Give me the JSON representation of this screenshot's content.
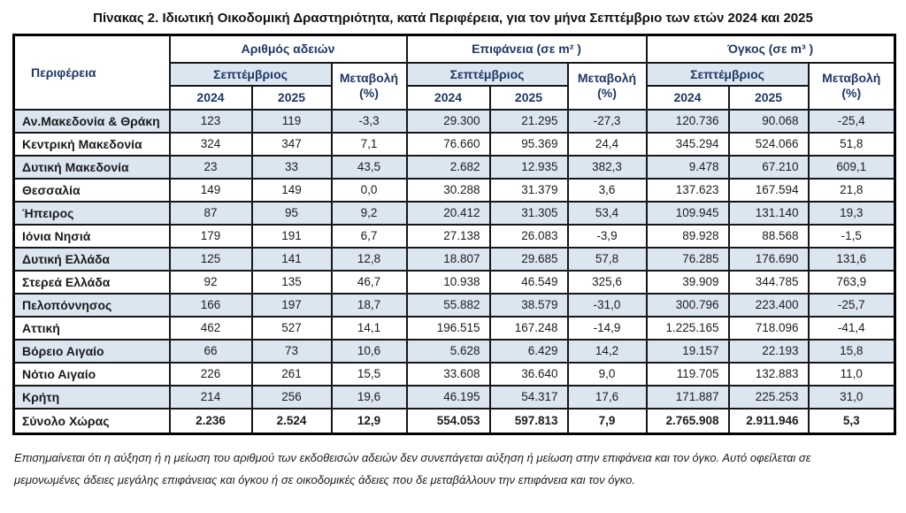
{
  "title": "Πίνακας 2. Ιδιωτική Οικοδομική Δραστηριότητα, κατά  Περιφέρεια, για τον μήνα Σεπτέμβριο των ετών 2024 και 2025",
  "colors": {
    "band_blue": "#dce6f1",
    "header_text_navy": "#1f3864",
    "border_black": "#161616",
    "background": "#ffffff"
  },
  "table": {
    "region_header": "Περιφέρεια",
    "groups": [
      {
        "label": "Αριθμός αδειών",
        "month": "Σεπτέμβριος",
        "change": "Μεταβολή",
        "change_unit": "(%)",
        "years": [
          "2024",
          "2025"
        ]
      },
      {
        "label": "Επιφάνεια (σε m² )",
        "month": "Σεπτέμβριος",
        "change": "Μεταβολή",
        "change_unit": "(%)",
        "years": [
          "2024",
          "2025"
        ]
      },
      {
        "label": "Όγκος (σε m³ )",
        "month": "Σεπτέμβριος",
        "change": "Μεταβολή",
        "change_unit": "(%)",
        "years": [
          "2024",
          "2025"
        ]
      }
    ],
    "rows": [
      [
        "Αν.Μακεδονία & Θράκη",
        "123",
        "119",
        "-3,3",
        "29.300",
        "21.295",
        "-27,3",
        "120.736",
        "90.068",
        "-25,4"
      ],
      [
        "Κεντρική Μακεδονία",
        "324",
        "347",
        "7,1",
        "76.660",
        "95.369",
        "24,4",
        "345.294",
        "524.066",
        "51,8"
      ],
      [
        "Δυτική Μακεδονία",
        "23",
        "33",
        "43,5",
        "2.682",
        "12.935",
        "382,3",
        "9.478",
        "67.210",
        "609,1"
      ],
      [
        "Θεσσαλία",
        "149",
        "149",
        "0,0",
        "30.288",
        "31.379",
        "3,6",
        "137.623",
        "167.594",
        "21,8"
      ],
      [
        "Ήπειρος",
        "87",
        "95",
        "9,2",
        "20.412",
        "31.305",
        "53,4",
        "109.945",
        "131.140",
        "19,3"
      ],
      [
        "Ιόνια Νησιά",
        "179",
        "191",
        "6,7",
        "27.138",
        "26.083",
        "-3,9",
        "89.928",
        "88.568",
        "-1,5"
      ],
      [
        "Δυτική Ελλάδα",
        "125",
        "141",
        "12,8",
        "18.807",
        "29.685",
        "57,8",
        "76.285",
        "176.690",
        "131,6"
      ],
      [
        "Στερεά Ελλάδα",
        "92",
        "135",
        "46,7",
        "10.938",
        "46.549",
        "325,6",
        "39.909",
        "344.785",
        "763,9"
      ],
      [
        "Πελοπόννησος",
        "166",
        "197",
        "18,7",
        "55.882",
        "38.579",
        "-31,0",
        "300.796",
        "223.400",
        "-25,7"
      ],
      [
        "Αττική",
        "462",
        "527",
        "14,1",
        "196.515",
        "167.248",
        "-14,9",
        "1.225.165",
        "718.096",
        "-41,4"
      ],
      [
        "Βόρειο Αιγαίο",
        "66",
        "73",
        "10,6",
        "5.628",
        "6.429",
        "14,2",
        "19.157",
        "22.193",
        "15,8"
      ],
      [
        "Νότιο Αιγαίο",
        "226",
        "261",
        "15,5",
        "33.608",
        "36.640",
        "9,0",
        "119.705",
        "132.883",
        "11,0"
      ],
      [
        "Κρήτη",
        "214",
        "256",
        "19,6",
        "46.195",
        "54.317",
        "17,6",
        "171.887",
        "225.253",
        "31,0"
      ]
    ],
    "total": [
      "Σύνολο Χώρας",
      "2.236",
      "2.524",
      "12,9",
      "554.053",
      "597.813",
      "7,9",
      "2.765.908",
      "2.911.946",
      "5,3"
    ]
  },
  "footnote_lines": [
    "Επισημαίνεται ότι η αύξηση ή η μείωση του αριθμού των εκδοθεισών αδειών δεν συνεπάγεται αύξηση ή μείωση στην επιφάνεια και τον όγκο. Αυτό οφείλεται σε",
    "μεμονωμένες άδειες μεγάλης επιφάνειας και όγκου ή σε οικοδομικές άδειες που δε μεταβάλλουν την επιφάνεια και τον όγκο."
  ]
}
